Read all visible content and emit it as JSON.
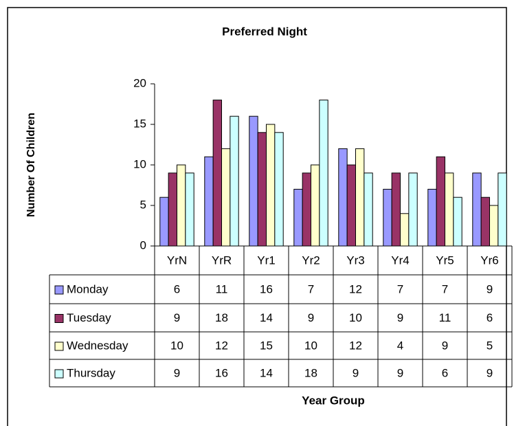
{
  "chart_data": {
    "type": "bar",
    "title": "Preferred Night",
    "y_label": "Number Of Children",
    "x_label": "Year Group",
    "categories": [
      "YrN",
      "YrR",
      "Yr1",
      "Yr2",
      "Yr3",
      "Yr4",
      "Yr5",
      "Yr6"
    ],
    "series": [
      {
        "name": "Monday",
        "color": "#9999ff",
        "values": [
          6,
          11,
          16,
          7,
          12,
          7,
          7,
          9
        ]
      },
      {
        "name": "Tuesday",
        "color": "#993366",
        "values": [
          9,
          18,
          14,
          9,
          10,
          9,
          11,
          6
        ]
      },
      {
        "name": "Wednesday",
        "color": "#ffffcc",
        "values": [
          10,
          12,
          15,
          10,
          12,
          4,
          9,
          5
        ]
      },
      {
        "name": "Thursday",
        "color": "#ccffff",
        "values": [
          9,
          16,
          14,
          18,
          9,
          9,
          6,
          9
        ]
      }
    ],
    "ylim": [
      0,
      20
    ],
    "yticks": [
      0,
      5,
      10,
      15,
      20
    ],
    "grid": false,
    "data_table": true
  }
}
